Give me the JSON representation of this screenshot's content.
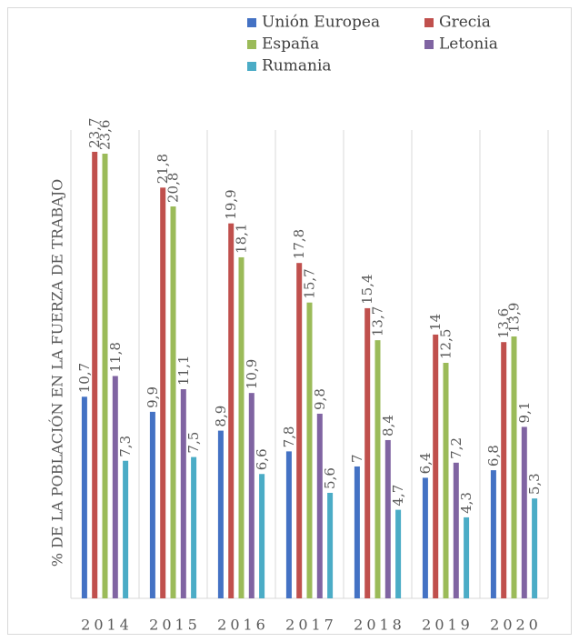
{
  "chart_data": {
    "type": "bar",
    "y_label": "% DE LA POBLACIÓN  EN LA FUERZA DE TRABAJO",
    "categories": [
      "2014",
      "2015",
      "2016",
      "2017",
      "2018",
      "2019",
      "2020"
    ],
    "series": [
      {
        "name": "Unión Europea",
        "color": "#4472c4",
        "values": [
          10.7,
          9.9,
          8.9,
          7.8,
          7,
          6.4,
          6.8
        ],
        "value_labels": [
          "10,7",
          "9,9",
          "8,9",
          "7,8",
          "7",
          "6,4",
          "6,8"
        ]
      },
      {
        "name": "Grecia",
        "color": "#c0504d",
        "values": [
          23.7,
          21.8,
          19.9,
          17.8,
          15.4,
          14,
          13.6
        ],
        "value_labels": [
          "23,7",
          "21,8",
          "19,9",
          "17,8",
          "15,4",
          "14",
          "13,6"
        ]
      },
      {
        "name": "España",
        "color": "#9bbb59",
        "values": [
          23.6,
          20.8,
          18.1,
          15.7,
          13.7,
          12.5,
          13.9
        ],
        "value_labels": [
          "23,6",
          "20,8",
          "18,1",
          "15,7",
          "13,7",
          "12,5",
          "13,9"
        ]
      },
      {
        "name": "Letonia",
        "color": "#8064a2",
        "values": [
          11.8,
          11.1,
          10.9,
          9.8,
          8.4,
          7.2,
          9.1
        ],
        "value_labels": [
          "11,8",
          "11,1",
          "10,9",
          "9,8",
          "8,4",
          "7,2",
          "9,1"
        ]
      },
      {
        "name": "Rumania",
        "color": "#4bacc6",
        "values": [
          7.3,
          7.5,
          6.6,
          5.6,
          4.7,
          4.3,
          5.3
        ],
        "value_labels": [
          "7,3",
          "7,5",
          "6,6",
          "5,6",
          "4,7",
          "4,3",
          "5,3"
        ]
      }
    ],
    "ylim": [
      0,
      25
    ]
  }
}
